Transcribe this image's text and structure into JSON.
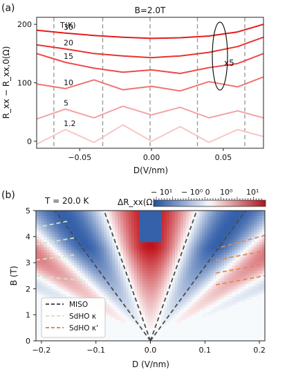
{
  "chart_data": [
    {
      "panel_label": "(a)",
      "type": "line",
      "title": "B=2.0T",
      "xlabel": "D(V/nm)",
      "ylabel": "R_xx − R_xx,0(Ω)",
      "xlim": [
        -0.08,
        0.078
      ],
      "ylim": [
        -12,
        212
      ],
      "xticks": [
        -0.05,
        0.0,
        0.05
      ],
      "xtick_labels": [
        "−0.05",
        "0.00",
        "0.05"
      ],
      "yticks": [
        0,
        100,
        200
      ],
      "ytick_labels": [
        "0",
        "100",
        "200"
      ],
      "legend_title": "T(K)",
      "annotation": "x5",
      "dashed_lines_x": [
        -0.068,
        -0.034,
        -0.001,
        0.032,
        0.065
      ],
      "series": [
        {
          "name": "30",
          "color": "#e41a1c",
          "x": [
            -0.08,
            -0.06,
            -0.04,
            -0.02,
            0.0,
            0.02,
            0.04,
            0.06,
            0.078
          ],
          "y": [
            190,
            185,
            181,
            178,
            176,
            177,
            180,
            187,
            200
          ]
        },
        {
          "name": "20",
          "color": "#e8322f",
          "x": [
            -0.08,
            -0.06,
            -0.04,
            -0.02,
            0.0,
            0.02,
            0.04,
            0.06,
            0.078
          ],
          "y": [
            165,
            158,
            150,
            146,
            143,
            146,
            152,
            162,
            178
          ]
        },
        {
          "name": "15",
          "color": "#ee4a48",
          "x": [
            -0.08,
            -0.06,
            -0.04,
            -0.02,
            0.0,
            0.02,
            0.04,
            0.06,
            0.078
          ],
          "y": [
            150,
            135,
            125,
            118,
            122,
            116,
            126,
            133,
            150
          ]
        },
        {
          "name": "10",
          "color": "#f27272",
          "x": [
            -0.08,
            -0.06,
            -0.04,
            -0.02,
            0.0,
            0.02,
            0.04,
            0.06,
            0.078
          ],
          "y": [
            98,
            90,
            105,
            88,
            94,
            86,
            102,
            93,
            110
          ]
        },
        {
          "name": "5",
          "color": "#f6a2a2",
          "x": [
            -0.08,
            -0.06,
            -0.04,
            -0.02,
            0.0,
            0.02,
            0.04,
            0.06,
            0.078
          ],
          "y": [
            38,
            55,
            40,
            60,
            45,
            58,
            40,
            52,
            40
          ]
        },
        {
          "name": "1.2",
          "color": "#f8c6c6",
          "x": [
            -0.08,
            -0.06,
            -0.04,
            -0.02,
            0.0,
            0.02,
            0.04,
            0.06,
            0.078
          ],
          "y": [
            -5,
            20,
            -2,
            28,
            0,
            25,
            -2,
            20,
            8
          ]
        }
      ]
    },
    {
      "panel_label": "(b)",
      "type": "heatmap",
      "title": "T = 20.0 K",
      "xlabel": "D (V/nm)",
      "ylabel": "B (T)",
      "xlim": [
        -0.21,
        0.21
      ],
      "ylim": [
        0,
        5
      ],
      "xticks": [
        -0.2,
        -0.1,
        0.0,
        0.1,
        0.2
      ],
      "xtick_labels": [
        "−0.2",
        "−0.1",
        "0.0",
        "0.1",
        "0.2"
      ],
      "yticks": [
        0,
        1,
        2,
        3,
        4,
        5
      ],
      "ytick_labels": [
        "0",
        "1",
        "2",
        "3",
        "4",
        "5"
      ],
      "colorbar_label": "ΔR_xx(Ω)",
      "colorbar_ticks": [
        "− 10¹",
        "− 10⁰ 0",
        "10⁰",
        "10¹"
      ],
      "colormap": [
        "#1f4fa0",
        "#ffffff",
        "#c0141c"
      ],
      "legend_position": "lower-left",
      "legend": [
        {
          "label": "MISO",
          "color": "#4a4a4a",
          "style": "dashed"
        },
        {
          "label": "SdHO κ",
          "color": "#cfe6c8",
          "style": "dashed"
        },
        {
          "label": "SdHO κ'",
          "color": "#d98a5a",
          "style": "dashed"
        }
      ],
      "miso_lines": [
        {
          "from": [
            0,
            0
          ],
          "to": [
            -0.175,
            5
          ]
        },
        {
          "from": [
            0,
            0
          ],
          "to": [
            -0.085,
            5
          ]
        },
        {
          "from": [
            0,
            0
          ],
          "to": [
            0.085,
            5
          ]
        },
        {
          "from": [
            0,
            0
          ],
          "to": [
            0.175,
            5
          ]
        }
      ],
      "sdho_kappa_lines": [
        {
          "from": [
            -0.21,
            4.35
          ],
          "to": [
            -0.15,
            4.6
          ]
        },
        {
          "from": [
            -0.21,
            3.7
          ],
          "to": [
            -0.14,
            3.95
          ]
        },
        {
          "from": [
            -0.21,
            3.1
          ],
          "to": [
            -0.14,
            3.3
          ]
        },
        {
          "from": [
            -0.21,
            2.5
          ],
          "to": [
            -0.12,
            2.3
          ]
        }
      ],
      "sdho_kappa_prime_lines": [
        {
          "from": [
            0.13,
            3.6
          ],
          "to": [
            0.21,
            4.05
          ]
        },
        {
          "from": [
            0.12,
            3.1
          ],
          "to": [
            0.21,
            3.45
          ]
        },
        {
          "from": [
            0.12,
            2.6
          ],
          "to": [
            0.21,
            2.95
          ]
        },
        {
          "from": [
            0.12,
            2.15
          ],
          "to": [
            0.21,
            2.5
          ]
        }
      ]
    }
  ]
}
